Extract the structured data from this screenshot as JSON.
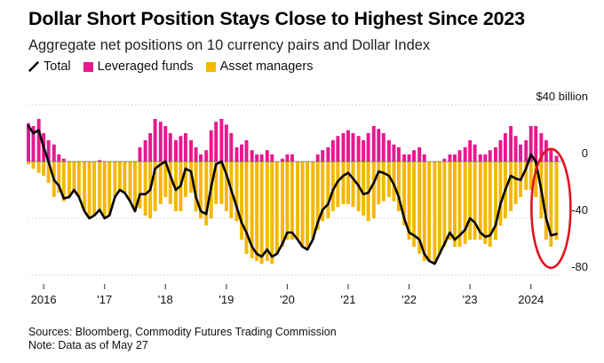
{
  "title": "Dollar Short Position Stays Close to Highest Since 2023",
  "subtitle": "Aggregate net positions on 10 currency pairs and Dollar Index",
  "legend": {
    "total": "Total",
    "leveraged": "Leveraged funds",
    "asset": "Asset managers"
  },
  "colors": {
    "total": "#000000",
    "leveraged": "#e8188f",
    "asset": "#f5b800",
    "grid": "#bdbdbd",
    "annotation_circle": "#e0141e"
  },
  "footnote": {
    "sources": "Sources: Bloomberg, Commodity Futures Trading Commission",
    "note": "Note: Data as of May 27"
  },
  "chart_data": {
    "type": "bar",
    "stacked": true,
    "ylim": [
      -85,
      40
    ],
    "y_ticks": [
      {
        "value": 40,
        "label": "$40 billion"
      },
      {
        "value": 0,
        "label": "0"
      },
      {
        "value": -40,
        "label": "-40"
      },
      {
        "value": -80,
        "label": "-80"
      }
    ],
    "x_range": [
      2015.75,
      2024.5
    ],
    "x_ticks": [
      {
        "value": 2016.0,
        "label": "2016"
      },
      {
        "value": 2017.0,
        "label": "'17"
      },
      {
        "value": 2018.0,
        "label": "'18"
      },
      {
        "value": 2019.0,
        "label": "'19"
      },
      {
        "value": 2020.0,
        "label": "'20"
      },
      {
        "value": 2021.0,
        "label": "'21"
      },
      {
        "value": 2022.0,
        "label": "'22"
      },
      {
        "value": 2023.0,
        "label": "'23"
      },
      {
        "value": 2024.0,
        "label": "2024"
      }
    ],
    "annotation": {
      "type": "ellipse",
      "x_center": 2024.33,
      "y_center": -33
    },
    "x": [
      2015.75,
      2015.83,
      2015.92,
      2016.0,
      2016.08,
      2016.17,
      2016.25,
      2016.33,
      2016.42,
      2016.5,
      2016.58,
      2016.67,
      2016.75,
      2016.83,
      2016.92,
      2017.0,
      2017.08,
      2017.17,
      2017.25,
      2017.33,
      2017.42,
      2017.5,
      2017.58,
      2017.67,
      2017.75,
      2017.83,
      2017.92,
      2018.0,
      2018.08,
      2018.17,
      2018.25,
      2018.33,
      2018.42,
      2018.5,
      2018.58,
      2018.67,
      2018.75,
      2018.83,
      2018.92,
      2019.0,
      2019.08,
      2019.17,
      2019.25,
      2019.33,
      2019.42,
      2019.5,
      2019.58,
      2019.67,
      2019.75,
      2019.83,
      2019.92,
      2020.0,
      2020.08,
      2020.17,
      2020.25,
      2020.33,
      2020.42,
      2020.5,
      2020.58,
      2020.67,
      2020.75,
      2020.83,
      2020.92,
      2021.0,
      2021.08,
      2021.17,
      2021.25,
      2021.33,
      2021.42,
      2021.5,
      2021.58,
      2021.67,
      2021.75,
      2021.83,
      2021.92,
      2022.0,
      2022.08,
      2022.17,
      2022.25,
      2022.33,
      2022.42,
      2022.5,
      2022.58,
      2022.67,
      2022.75,
      2022.83,
      2022.92,
      2023.0,
      2023.08,
      2023.17,
      2023.25,
      2023.33,
      2023.42,
      2023.5,
      2023.58,
      2023.67,
      2023.75,
      2023.83,
      2023.92,
      2024.0,
      2024.08,
      2024.17,
      2024.25,
      2024.33,
      2024.42
    ],
    "series": [
      {
        "name": "Leveraged funds",
        "values": [
          27,
          25,
          30,
          20,
          15,
          12,
          5,
          2,
          0,
          0,
          0,
          0,
          0,
          0,
          1,
          0,
          0,
          0,
          0,
          0,
          0,
          0,
          10,
          15,
          20,
          30,
          28,
          25,
          20,
          15,
          18,
          20,
          15,
          10,
          5,
          8,
          22,
          28,
          30,
          26,
          20,
          10,
          12,
          15,
          8,
          5,
          5,
          8,
          5,
          0,
          2,
          5,
          5,
          0,
          0,
          0,
          0,
          5,
          8,
          10,
          15,
          18,
          20,
          22,
          20,
          18,
          15,
          20,
          25,
          23,
          20,
          15,
          12,
          10,
          5,
          5,
          8,
          10,
          5,
          0,
          0,
          0,
          2,
          5,
          5,
          8,
          10,
          15,
          12,
          5,
          5,
          8,
          10,
          15,
          20,
          25,
          18,
          12,
          15,
          25,
          25,
          20,
          15,
          8,
          4
        ]
      },
      {
        "name": "Asset managers",
        "values": [
          -2,
          -5,
          -8,
          -10,
          -15,
          -25,
          -22,
          -28,
          -25,
          -20,
          -25,
          -35,
          -40,
          -38,
          -35,
          -40,
          -38,
          -25,
          -20,
          -22,
          -28,
          -35,
          -33,
          -38,
          -40,
          -35,
          -30,
          -25,
          -30,
          -35,
          -35,
          -25,
          -22,
          -35,
          -40,
          -45,
          -40,
          -30,
          -30,
          -35,
          -40,
          -42,
          -55,
          -65,
          -68,
          -70,
          -72,
          -70,
          -72,
          -65,
          -60,
          -55,
          -55,
          -55,
          -60,
          -62,
          -55,
          -48,
          -42,
          -40,
          -35,
          -32,
          -30,
          -30,
          -32,
          -35,
          -38,
          -42,
          -40,
          -30,
          -28,
          -25,
          -28,
          -35,
          -45,
          -55,
          -60,
          -65,
          -70,
          -70,
          -72,
          -65,
          -60,
          -55,
          -60,
          -60,
          -58,
          -55,
          -55,
          -55,
          -58,
          -60,
          -55,
          -45,
          -40,
          -35,
          -30,
          -25,
          -20,
          -20,
          -25,
          -40,
          -55,
          -60,
          -55
        ]
      },
      {
        "name": "Total",
        "values": [
          25,
          20,
          22,
          10,
          0,
          -13,
          -17,
          -26,
          -25,
          -20,
          -25,
          -35,
          -40,
          -38,
          -34,
          -40,
          -38,
          -25,
          -20,
          -22,
          -28,
          -35,
          -23,
          -23,
          -20,
          -5,
          -2,
          0,
          -10,
          -20,
          -17,
          -5,
          -7,
          -25,
          -35,
          -37,
          -18,
          -2,
          0,
          -9,
          -20,
          -32,
          -43,
          -50,
          -60,
          -65,
          -67,
          -62,
          -67,
          -65,
          -58,
          -50,
          -50,
          -55,
          -60,
          -62,
          -55,
          -43,
          -34,
          -30,
          -20,
          -14,
          -10,
          -8,
          -12,
          -17,
          -23,
          -22,
          -15,
          -7,
          -8,
          -10,
          -16,
          -25,
          -40,
          -50,
          -52,
          -55,
          -65,
          -70,
          -72,
          -65,
          -58,
          -50,
          -55,
          -52,
          -48,
          -40,
          -43,
          -50,
          -53,
          -52,
          -45,
          -30,
          -20,
          -10,
          -12,
          -13,
          -5,
          5,
          0,
          -20,
          -40,
          -52,
          -51
        ]
      }
    ]
  }
}
